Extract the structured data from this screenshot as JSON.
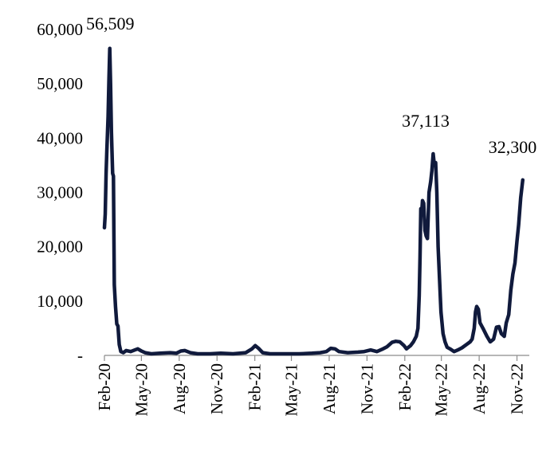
{
  "chart_data": {
    "type": "line",
    "title": "",
    "xlabel": "",
    "ylabel": "",
    "x_ticks": [
      "Feb-20",
      "May-20",
      "Aug-20",
      "Nov-20",
      "Feb-21",
      "May-21",
      "Aug-21",
      "Nov-21",
      "Feb-22",
      "May-22",
      "Aug-22",
      "Nov-22"
    ],
    "y_ticks": [
      "-",
      "10,000",
      "20,000",
      "30,000",
      "40,000",
      "50,000",
      "60,000"
    ],
    "ylim": [
      0,
      60000
    ],
    "xlim": [
      "2020-02-01",
      "2022-12-01"
    ],
    "grid": false,
    "legend": "none",
    "line_color": "#101a3c",
    "annotations": [
      {
        "text": "56,509",
        "x": "2020-02-15",
        "y": 56509
      },
      {
        "text": "37,113",
        "x": "2022-04-20",
        "y": 37113
      },
      {
        "text": "32,300",
        "x": "2022-11-29",
        "y": 32300
      }
    ],
    "series": [
      {
        "values": [
          [
            "2020-02-01",
            23500
          ],
          [
            "2020-02-03",
            26000
          ],
          [
            "2020-02-05",
            33500
          ],
          [
            "2020-02-07",
            38000
          ],
          [
            "2020-02-10",
            44000
          ],
          [
            "2020-02-12",
            51000
          ],
          [
            "2020-02-14",
            56509
          ],
          [
            "2020-02-16",
            50000
          ],
          [
            "2020-02-18",
            41000
          ],
          [
            "2020-02-21",
            33500
          ],
          [
            "2020-02-23",
            33000
          ],
          [
            "2020-02-25",
            13000
          ],
          [
            "2020-02-28",
            9000
          ],
          [
            "2020-03-02",
            5800
          ],
          [
            "2020-03-05",
            5400
          ],
          [
            "2020-03-08",
            2000
          ],
          [
            "2020-03-12",
            700
          ],
          [
            "2020-03-18",
            500
          ],
          [
            "2020-03-25",
            900
          ],
          [
            "2020-04-05",
            700
          ],
          [
            "2020-04-15",
            1000
          ],
          [
            "2020-04-22",
            1200
          ],
          [
            "2020-05-01",
            800
          ],
          [
            "2020-05-10",
            500
          ],
          [
            "2020-05-25",
            300
          ],
          [
            "2020-06-15",
            400
          ],
          [
            "2020-07-10",
            500
          ],
          [
            "2020-07-25",
            400
          ],
          [
            "2020-08-05",
            800
          ],
          [
            "2020-08-15",
            900
          ],
          [
            "2020-08-28",
            500
          ],
          [
            "2020-09-15",
            300
          ],
          [
            "2020-10-15",
            300
          ],
          [
            "2020-11-10",
            400
          ],
          [
            "2020-12-10",
            300
          ],
          [
            "2021-01-10",
            500
          ],
          [
            "2021-01-25",
            1200
          ],
          [
            "2021-02-02",
            1800
          ],
          [
            "2021-02-10",
            1300
          ],
          [
            "2021-02-20",
            500
          ],
          [
            "2021-03-10",
            300
          ],
          [
            "2021-04-15",
            300
          ],
          [
            "2021-05-20",
            300
          ],
          [
            "2021-06-20",
            400
          ],
          [
            "2021-07-10",
            500
          ],
          [
            "2021-07-25",
            700
          ],
          [
            "2021-08-05",
            1300
          ],
          [
            "2021-08-15",
            1200
          ],
          [
            "2021-08-25",
            700
          ],
          [
            "2021-09-15",
            500
          ],
          [
            "2021-10-10",
            600
          ],
          [
            "2021-10-25",
            700
          ],
          [
            "2021-11-10",
            1000
          ],
          [
            "2021-11-25",
            700
          ],
          [
            "2021-12-10",
            1200
          ],
          [
            "2021-12-20",
            1600
          ],
          [
            "2022-01-01",
            2400
          ],
          [
            "2022-01-10",
            2600
          ],
          [
            "2022-01-20",
            2500
          ],
          [
            "2022-01-30",
            1800
          ],
          [
            "2022-02-05",
            1200
          ],
          [
            "2022-02-15",
            1800
          ],
          [
            "2022-02-22",
            2500
          ],
          [
            "2022-03-01",
            3500
          ],
          [
            "2022-03-05",
            5000
          ],
          [
            "2022-03-08",
            11000
          ],
          [
            "2022-03-10",
            18000
          ],
          [
            "2022-03-12",
            27000
          ],
          [
            "2022-03-14",
            26000
          ],
          [
            "2022-03-16",
            28500
          ],
          [
            "2022-03-19",
            28000
          ],
          [
            "2022-03-22",
            23000
          ],
          [
            "2022-03-25",
            22000
          ],
          [
            "2022-03-28",
            21500
          ],
          [
            "2022-04-01",
            30000
          ],
          [
            "2022-04-05",
            32000
          ],
          [
            "2022-04-08",
            34000
          ],
          [
            "2022-04-11",
            37113
          ],
          [
            "2022-04-14",
            35000
          ],
          [
            "2022-04-17",
            35500
          ],
          [
            "2022-04-20",
            30000
          ],
          [
            "2022-04-23",
            20000
          ],
          [
            "2022-04-26",
            15000
          ],
          [
            "2022-04-30",
            8000
          ],
          [
            "2022-05-05",
            4000
          ],
          [
            "2022-05-10",
            2500
          ],
          [
            "2022-05-15",
            1500
          ],
          [
            "2022-05-22",
            1200
          ],
          [
            "2022-06-01",
            700
          ],
          [
            "2022-06-10",
            1000
          ],
          [
            "2022-06-20",
            1400
          ],
          [
            "2022-07-01",
            2000
          ],
          [
            "2022-07-10",
            2500
          ],
          [
            "2022-07-15",
            3000
          ],
          [
            "2022-07-20",
            5000
          ],
          [
            "2022-07-23",
            8000
          ],
          [
            "2022-07-26",
            9000
          ],
          [
            "2022-07-30",
            8500
          ],
          [
            "2022-08-03",
            6000
          ],
          [
            "2022-08-10",
            5000
          ],
          [
            "2022-08-20",
            3500
          ],
          [
            "2022-08-28",
            2500
          ],
          [
            "2022-09-05",
            3000
          ],
          [
            "2022-09-12",
            5200
          ],
          [
            "2022-09-18",
            5300
          ],
          [
            "2022-09-24",
            4000
          ],
          [
            "2022-10-01",
            3500
          ],
          [
            "2022-10-06",
            6000
          ],
          [
            "2022-10-12",
            7500
          ],
          [
            "2022-10-17",
            12000
          ],
          [
            "2022-10-22",
            15000
          ],
          [
            "2022-10-27",
            17000
          ],
          [
            "2022-11-01",
            21000
          ],
          [
            "2022-11-05",
            24000
          ],
          [
            "2022-11-10",
            29000
          ],
          [
            "2022-11-15",
            32300
          ]
        ]
      }
    ]
  }
}
